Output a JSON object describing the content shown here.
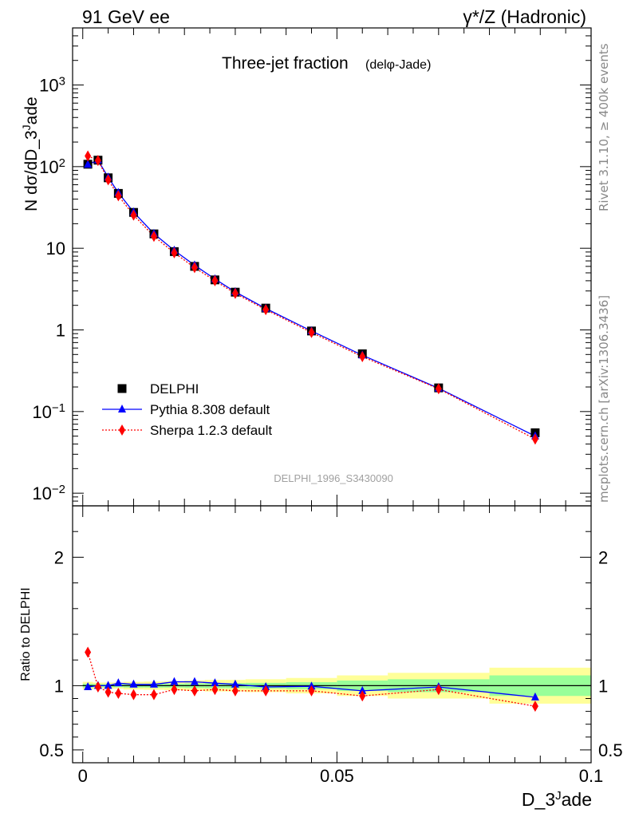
{
  "header": {
    "left": "91 GeV ee",
    "right_symbol": "γ*/Z",
    "right_text": "(Hadronic)"
  },
  "side_labels": {
    "rivet": "Rivet 3.1.10, ≥ 400k events",
    "mcplots": "mcplots.cern.ch [arXiv:1306.3436]"
  },
  "chart_data": [
    {
      "type": "line",
      "title": "Three-jet fraction",
      "subtitle": "(delφ-Jade)",
      "ylabel": "N dσ/dD_3^Jade",
      "yscale": "log",
      "ylim": [
        0.007,
        5000
      ],
      "xlim": [
        -0.002,
        0.1
      ],
      "grid": false,
      "legend_position": "bottom-left",
      "analysis_tag": "DELPHI_1996_S3430090",
      "y_ticks": [
        "10^-2",
        "10^-1",
        "1",
        "10",
        "10^2",
        "10^3"
      ],
      "x": [
        0.001,
        0.003,
        0.005,
        0.007,
        0.01,
        0.014,
        0.018,
        0.022,
        0.026,
        0.03,
        0.036,
        0.045,
        0.055,
        0.07,
        0.089
      ],
      "series": [
        {
          "name": "DELPHI",
          "color": "#000000",
          "marker": "square",
          "values": [
            107,
            120,
            73,
            47,
            27.5,
            15,
            9.1,
            6.0,
            4.1,
            2.9,
            1.85,
            0.97,
            0.51,
            0.195,
            0.055
          ]
        },
        {
          "name": "Pythia 8.308 default",
          "color": "#0000ff",
          "marker": "triangle",
          "line": "solid",
          "values": [
            106,
            120,
            74,
            48,
            27.7,
            15.1,
            9.4,
            6.2,
            4.2,
            2.92,
            1.83,
            0.97,
            0.49,
            0.193,
            0.05
          ]
        },
        {
          "name": "Sherpa 1.2.3 default",
          "color": "#ff0000",
          "marker": "diamond",
          "line": "dotted",
          "values": [
            135,
            119,
            69,
            44,
            25.5,
            14,
            8.8,
            5.8,
            4.0,
            2.8,
            1.77,
            0.93,
            0.47,
            0.19,
            0.046
          ]
        }
      ]
    },
    {
      "type": "line",
      "ylabel": "Ratio to DELPHI",
      "xlabel": "D_3^Jade",
      "ylim": [
        0.4,
        2.4
      ],
      "xlim": [
        -0.002,
        0.1
      ],
      "y_ticks": [
        "0.5",
        "1",
        "2"
      ],
      "x_ticks": [
        "0",
        "0.05",
        "0.1"
      ],
      "bands": {
        "edges": [
          0,
          0.002,
          0.004,
          0.006,
          0.008,
          0.012,
          0.016,
          0.02,
          0.024,
          0.028,
          0.032,
          0.04,
          0.05,
          0.06,
          0.08,
          0.1
        ],
        "green_half": [
          0.015,
          0.012,
          0.012,
          0.012,
          0.015,
          0.015,
          0.015,
          0.018,
          0.02,
          0.02,
          0.022,
          0.027,
          0.04,
          0.05,
          0.08
        ],
        "yellow_half": [
          0.03,
          0.024,
          0.024,
          0.024,
          0.03,
          0.032,
          0.035,
          0.04,
          0.045,
          0.045,
          0.05,
          0.06,
          0.08,
          0.1,
          0.14
        ]
      },
      "x": [
        0.001,
        0.003,
        0.005,
        0.007,
        0.01,
        0.014,
        0.018,
        0.022,
        0.026,
        0.03,
        0.036,
        0.045,
        0.055,
        0.07,
        0.089
      ],
      "series": [
        {
          "name": "Pythia 8.308 default",
          "color": "#0000ff",
          "values": [
            0.99,
            1.0,
            1.0,
            1.02,
            1.01,
            1.01,
            1.03,
            1.03,
            1.02,
            1.01,
            0.99,
            0.995,
            0.96,
            0.99,
            0.91
          ]
        },
        {
          "name": "Sherpa 1.2.3 default",
          "color": "#ff0000",
          "values": [
            1.26,
            0.99,
            0.95,
            0.94,
            0.93,
            0.93,
            0.97,
            0.96,
            0.97,
            0.96,
            0.96,
            0.96,
            0.92,
            0.97,
            0.84
          ]
        }
      ]
    }
  ]
}
